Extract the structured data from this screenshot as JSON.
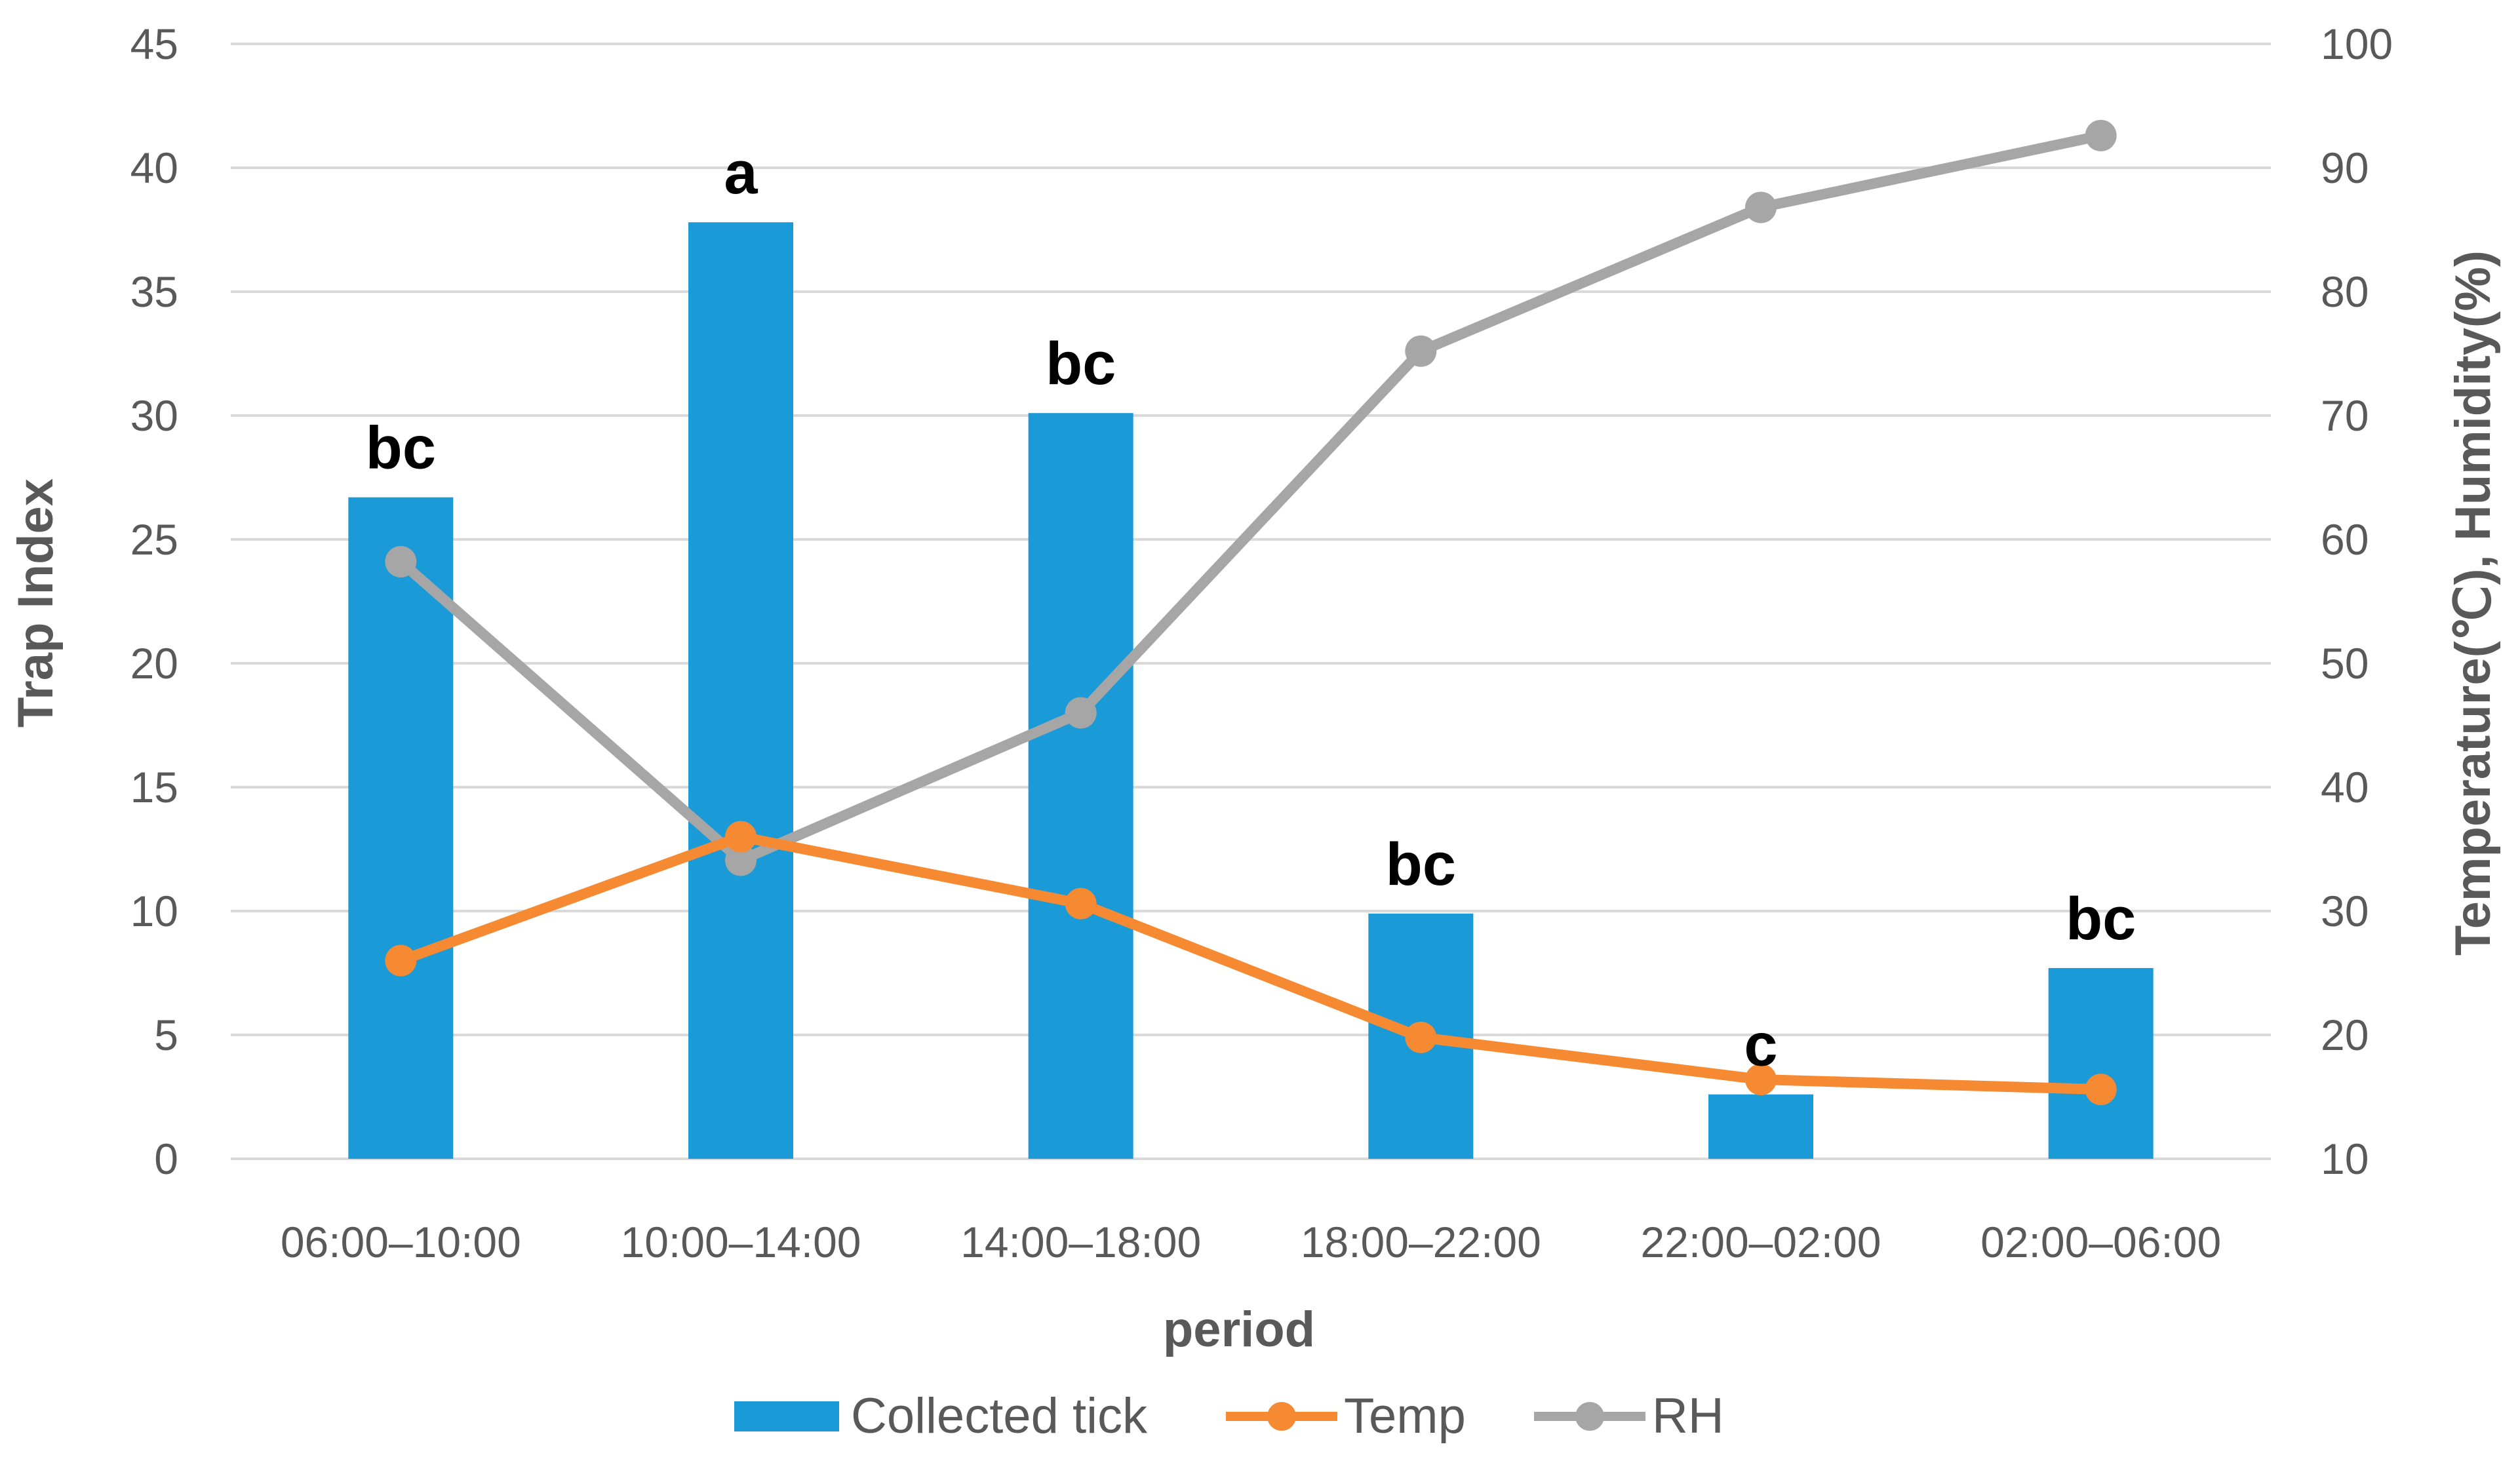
{
  "chart_data": {
    "type": "bar",
    "title": "",
    "xlabel": "period",
    "ylabel": "Trap Index",
    "y2label": "Temperature(℃), Humidity(%)",
    "categories": [
      "06:00–10:00",
      "10:00–14:00",
      "14:00–18:00",
      "18:00–22:00",
      "22:00–02:00",
      "02:00–06:00"
    ],
    "ylim": [
      0,
      45
    ],
    "y_ticks": [
      "0",
      "5",
      "10",
      "15",
      "20",
      "25",
      "30",
      "35",
      "40",
      "45"
    ],
    "y2lim": [
      10,
      100
    ],
    "y2_ticks": [
      "10",
      "20",
      "30",
      "40",
      "50",
      "60",
      "70",
      "80",
      "90",
      "100"
    ],
    "series": [
      {
        "name": "Collected tick",
        "type": "bar",
        "axis": "left",
        "color": "#1a9ad6",
        "values": [
          26.7,
          37.8,
          30.1,
          9.9,
          2.6,
          7.7
        ]
      },
      {
        "name": "Temp",
        "type": "line",
        "axis": "right",
        "color": "#f58a33",
        "values": [
          26,
          36,
          30.6,
          19.8,
          16.4,
          15.6
        ]
      },
      {
        "name": "RH",
        "type": "line",
        "axis": "right",
        "color": "#a6a6a6",
        "values": [
          58.2,
          34.1,
          46,
          75.2,
          86.8,
          92.6
        ]
      }
    ],
    "annotations": [
      "bc",
      "a",
      "bc",
      "bc",
      "c",
      "bc"
    ],
    "grid": true,
    "legend": "bottom"
  }
}
